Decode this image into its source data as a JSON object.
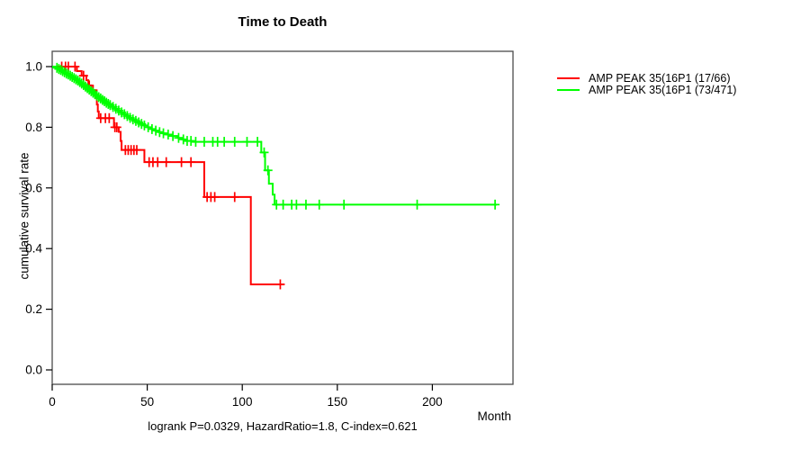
{
  "title": "Time to Death",
  "y_axis": {
    "label": "cumulative survival rate",
    "ticks": [
      0.0,
      0.2,
      0.4,
      0.6,
      0.8,
      1.0
    ]
  },
  "x_axis": {
    "label": "Month",
    "ticks": [
      0,
      50,
      100,
      150,
      200
    ]
  },
  "footer": "logrank P=0.0329, HazardRatio=1.8, C-index=0.621",
  "legend": {
    "items": [
      {
        "label": "AMP PEAK 35(16P1 (17/66)",
        "color": "#ff0000"
      },
      {
        "label": "AMP PEAK 35(16P1 (73/471)",
        "color": "#00ff00"
      }
    ]
  },
  "chart_data": {
    "type": "line",
    "subtype": "kaplan_meier_step",
    "title": "Time to Death",
    "xlabel": "Month",
    "ylabel": "cumulative survival rate",
    "xlim": [
      0,
      241
    ],
    "ylim": [
      0,
      1.05
    ],
    "x_ticks": [
      0,
      50,
      100,
      150,
      200
    ],
    "y_ticks": [
      0.0,
      0.2,
      0.4,
      0.6,
      0.8,
      1.0
    ],
    "annotation": "logrank P=0.0329, HazardRatio=1.8, C-index=0.621",
    "grid": false,
    "legend_position": "right-outside",
    "series": [
      {
        "name": "AMP PEAK 35(16P1 (17/66)",
        "color": "#ff0000",
        "events_over_n": "17/66",
        "start": [
          0,
          1.0
        ],
        "end_month": 122,
        "steps": [
          [
            13,
            0.985
          ],
          [
            15.5,
            0.97
          ],
          [
            18,
            0.955
          ],
          [
            19,
            0.938
          ],
          [
            20.5,
            0.922
          ],
          [
            23,
            0.898
          ],
          [
            23.5,
            0.875
          ],
          [
            24,
            0.852
          ],
          [
            24.5,
            0.83
          ],
          [
            32.5,
            0.8
          ],
          [
            35,
            0.785
          ],
          [
            36,
            0.755
          ],
          [
            36.5,
            0.725
          ],
          [
            48.5,
            0.685
          ],
          [
            80,
            0.57
          ],
          [
            104.5,
            0.282
          ]
        ],
        "censor_months": [
          5,
          7,
          8.5,
          12,
          16.5,
          19.5,
          21.5,
          25.5,
          28,
          30,
          33,
          34,
          38.5,
          40,
          41.5,
          43,
          44.5,
          51,
          53,
          55.5,
          60,
          68,
          73,
          81.5,
          83.5,
          85.5,
          96,
          120
        ]
      },
      {
        "name": "AMP PEAK 35(16P1 (73/471)",
        "color": "#00ff00",
        "events_over_n": "73/471",
        "start": [
          0,
          1.0
        ],
        "end_month": 234,
        "steps": [
          [
            2,
            0.996
          ],
          [
            3,
            0.992
          ],
          [
            4,
            0.989
          ],
          [
            5,
            0.985
          ],
          [
            6,
            0.981
          ],
          [
            7,
            0.977
          ],
          [
            8,
            0.974
          ],
          [
            9,
            0.97
          ],
          [
            10,
            0.966
          ],
          [
            11,
            0.962
          ],
          [
            12,
            0.958
          ],
          [
            13,
            0.954
          ],
          [
            14,
            0.949
          ],
          [
            15,
            0.944
          ],
          [
            16,
            0.939
          ],
          [
            17,
            0.934
          ],
          [
            18,
            0.929
          ],
          [
            19,
            0.924
          ],
          [
            20,
            0.919
          ],
          [
            21,
            0.914
          ],
          [
            22,
            0.909
          ],
          [
            23,
            0.904
          ],
          [
            24,
            0.899
          ],
          [
            25,
            0.895
          ],
          [
            26,
            0.89
          ],
          [
            27,
            0.886
          ],
          [
            28,
            0.881
          ],
          [
            29,
            0.877
          ],
          [
            30,
            0.873
          ],
          [
            31.5,
            0.867
          ],
          [
            33,
            0.861
          ],
          [
            34.5,
            0.855
          ],
          [
            36,
            0.849
          ],
          [
            37.5,
            0.843
          ],
          [
            39,
            0.837
          ],
          [
            40.5,
            0.831
          ],
          [
            42,
            0.826
          ],
          [
            43.5,
            0.821
          ],
          [
            45,
            0.816
          ],
          [
            46.5,
            0.811
          ],
          [
            48,
            0.806
          ],
          [
            50,
            0.8
          ],
          [
            52,
            0.794
          ],
          [
            54,
            0.789
          ],
          [
            56,
            0.784
          ],
          [
            58,
            0.78
          ],
          [
            60,
            0.776
          ],
          [
            63,
            0.771
          ],
          [
            66,
            0.765
          ],
          [
            68,
            0.76
          ],
          [
            70,
            0.755
          ],
          [
            74,
            0.752
          ],
          [
            110,
            0.717
          ],
          [
            112,
            0.658
          ],
          [
            114,
            0.614
          ],
          [
            116,
            0.578
          ],
          [
            117,
            0.545
          ]
        ],
        "censor_months": [
          2.5,
          3.5,
          4.5,
          5.5,
          6.5,
          7.5,
          8.5,
          9.5,
          10.5,
          11.5,
          12.5,
          13.5,
          14.5,
          15.5,
          16.5,
          17.5,
          18.5,
          19.5,
          20.5,
          21.5,
          22.5,
          23.5,
          24.5,
          25.5,
          26.5,
          27.5,
          28.5,
          29.5,
          30.5,
          32,
          33.5,
          35,
          36.5,
          38,
          39.5,
          41,
          42.5,
          44,
          45.5,
          47,
          48.5,
          50.5,
          52.5,
          54.5,
          56.5,
          58.5,
          61,
          63.5,
          66.5,
          69,
          71,
          73,
          75.5,
          80,
          84.5,
          87,
          90.5,
          96,
          102.5,
          108,
          111.5,
          113.5,
          118,
          121.5,
          126,
          128.5,
          133.5,
          140.5,
          153.5,
          192,
          233
        ]
      }
    ]
  }
}
